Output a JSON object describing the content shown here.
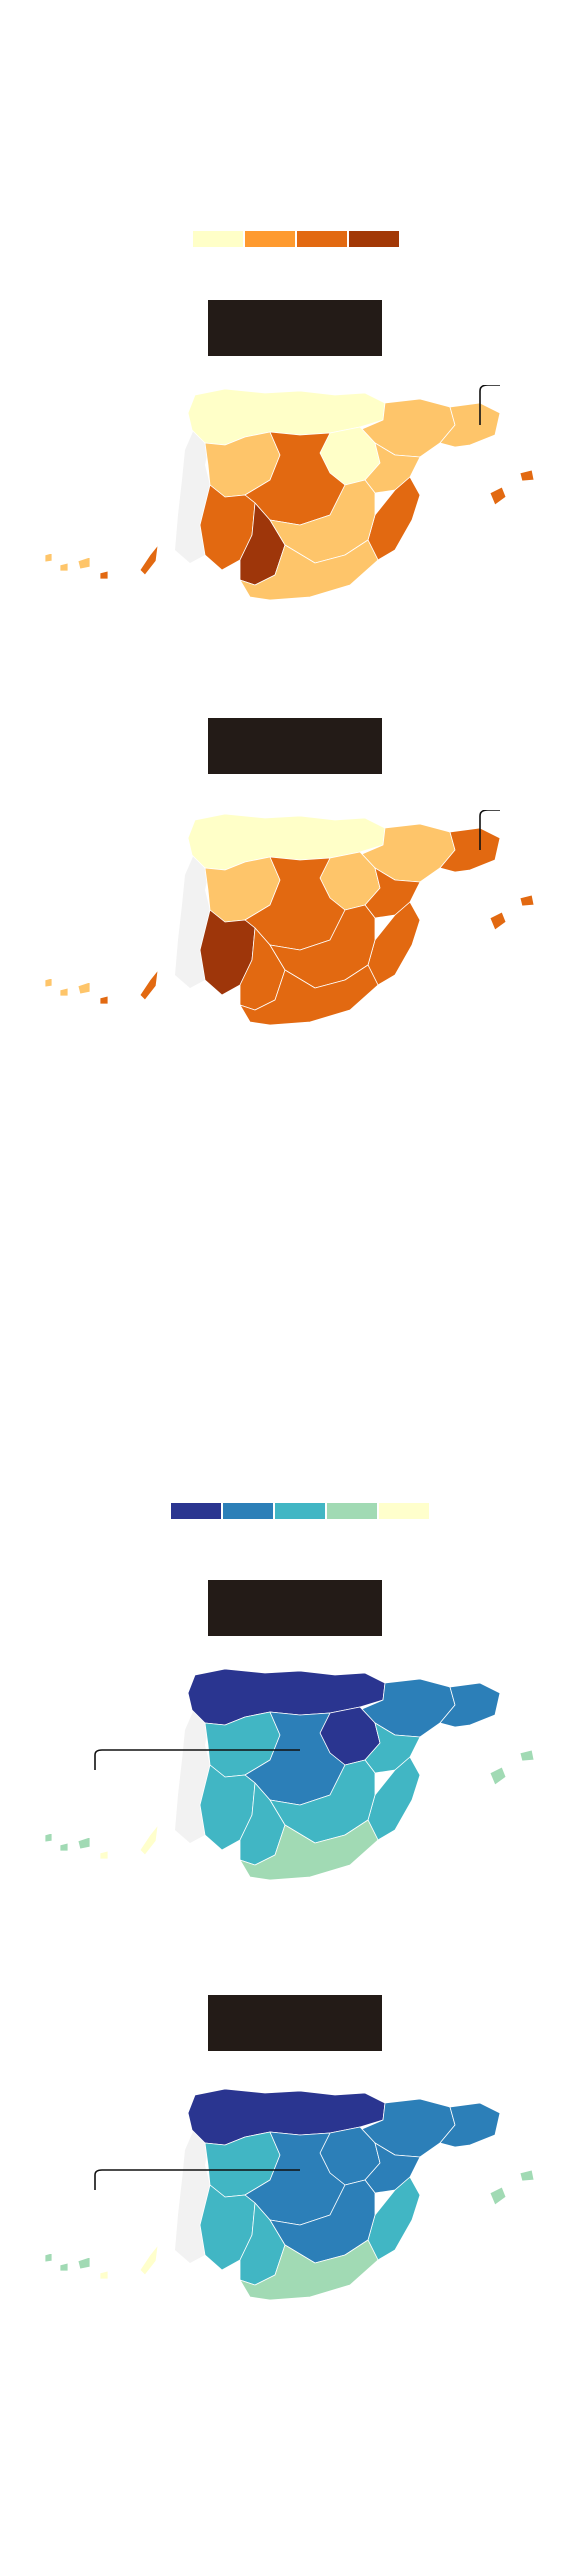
{
  "legend_top": {
    "colors": [
      "#ffffc8",
      "#fe9a2f",
      "#e26911",
      "#a23806"
    ]
  },
  "legend_bottom": {
    "colors": [
      "#2a3590",
      "#2c7fb8",
      "#41b6c4",
      "#a1dab4",
      "#ffffcc"
    ]
  },
  "colors": {
    "portugal": "#f2f2f2",
    "title_box": "#231b17",
    "warm": [
      "#ffffc8",
      "#fec56a",
      "#e26911",
      "#9e360a"
    ],
    "cool": [
      "#2a3590",
      "#2c7fb8",
      "#41b6c4",
      "#a1dab4",
      "#ffffcc"
    ]
  },
  "maps": [
    {
      "name": "map-1",
      "palette": "warm",
      "fills": {
        "north": 0,
        "north_east": 1,
        "catalonia": 1,
        "aragon": 0,
        "center_west": 1,
        "center": 2,
        "east": 1,
        "valencia": 2,
        "south_west": 2,
        "south_center": 3,
        "south_east": 1,
        "south": 1,
        "balearic": 2,
        "canary_west": 1,
        "canary_east": 2
      }
    },
    {
      "name": "map-2",
      "palette": "warm",
      "fills": {
        "north": 0,
        "north_east": 1,
        "catalonia": 2,
        "aragon": 1,
        "center_west": 1,
        "center": 2,
        "east": 2,
        "valencia": 2,
        "south_west": 3,
        "south_center": 2,
        "south_east": 2,
        "south": 2,
        "balearic": 2,
        "canary_west": 1,
        "canary_east": 2
      }
    },
    {
      "name": "map-3",
      "palette": "cool",
      "fills": {
        "north": 0,
        "north_east": 1,
        "catalonia": 1,
        "aragon": 0,
        "center_west": 2,
        "center": 1,
        "east": 2,
        "valencia": 2,
        "south_west": 2,
        "south_center": 2,
        "south_east": 2,
        "south": 3,
        "balearic": 3,
        "canary_west": 3,
        "canary_east": 4
      }
    },
    {
      "name": "map-4",
      "palette": "cool",
      "fills": {
        "north": 0,
        "north_east": 1,
        "catalonia": 1,
        "aragon": 1,
        "center_west": 2,
        "center": 1,
        "east": 1,
        "valencia": 2,
        "south_west": 2,
        "south_center": 2,
        "south_east": 1,
        "south": 3,
        "balearic": 3,
        "canary_west": 3,
        "canary_east": 4
      }
    }
  ]
}
